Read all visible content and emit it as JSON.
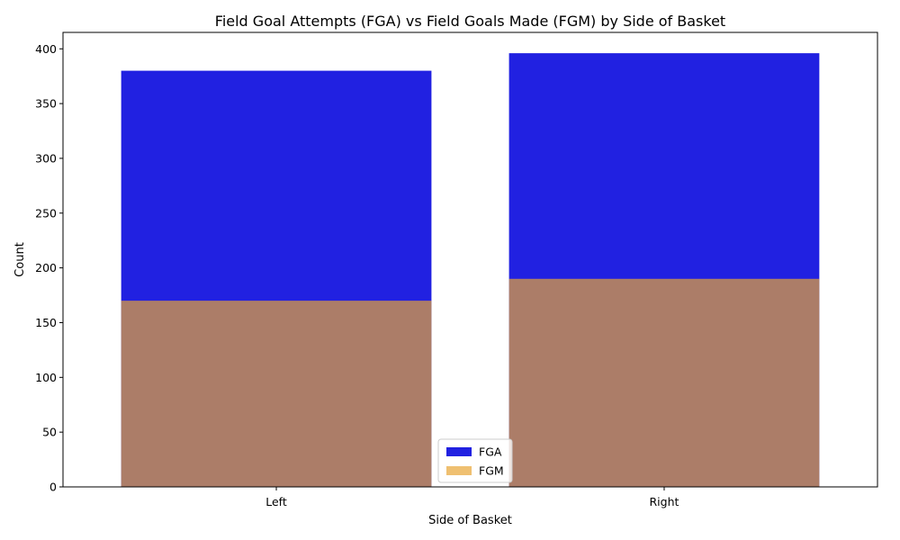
{
  "chart_data": {
    "type": "bar",
    "title": "Field Goal Attempts (FGA) vs Field Goals Made (FGM) by Side of Basket",
    "xlabel": "Side of Basket",
    "ylabel": "Count",
    "categories": [
      "Left",
      "Right"
    ],
    "series": [
      {
        "name": "FGA",
        "values": [
          380,
          396
        ],
        "color": "#0000dd",
        "opacity": 0.87
      },
      {
        "name": "FGM",
        "values": [
          170,
          190
        ],
        "color": "#e8a534",
        "opacity": 0.7
      }
    ],
    "overlay": true,
    "ylim": [
      0,
      415
    ],
    "yticks": [
      0,
      50,
      100,
      150,
      200,
      250,
      300,
      350,
      400
    ],
    "grid": false,
    "legend_position": "bottom-center"
  }
}
